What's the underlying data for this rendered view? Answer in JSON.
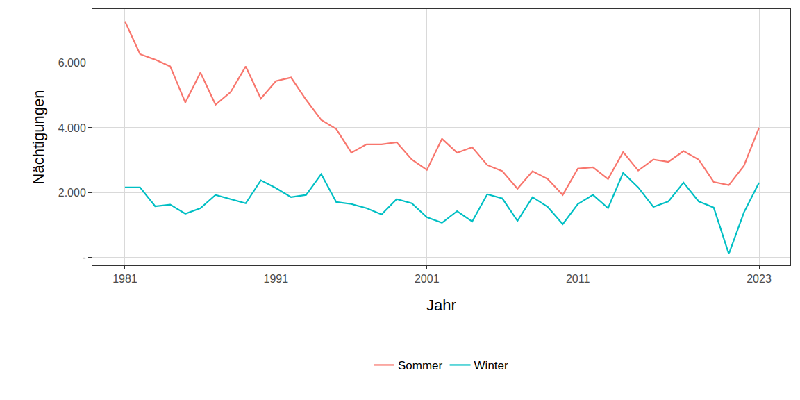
{
  "chart_data": {
    "type": "line",
    "x_label": "Jahr",
    "y_label": "Nächtigungen",
    "x": [
      1981,
      1982,
      1983,
      1984,
      1985,
      1986,
      1987,
      1988,
      1989,
      1990,
      1991,
      1992,
      1993,
      1994,
      1995,
      1996,
      1997,
      1998,
      1999,
      2000,
      2001,
      2002,
      2003,
      2004,
      2005,
      2006,
      2007,
      2008,
      2009,
      2010,
      2011,
      2012,
      2013,
      2014,
      2015,
      2016,
      2017,
      2018,
      2019,
      2020,
      2021,
      2022,
      2023
    ],
    "series": [
      {
        "name": "Sommer",
        "color": "#F8766D",
        "values": [
          7280,
          6270,
          6100,
          5890,
          4780,
          5700,
          4710,
          5100,
          5890,
          4900,
          5440,
          5550,
          4860,
          4240,
          3960,
          3230,
          3490,
          3490,
          3550,
          3020,
          2700,
          3660,
          3230,
          3400,
          2850,
          2660,
          2120,
          2660,
          2420,
          1930,
          2740,
          2780,
          2420,
          3250,
          2680,
          3020,
          2950,
          3280,
          3020,
          2330,
          2230,
          2830,
          4000
        ]
      },
      {
        "name": "Winter",
        "color": "#00BFC4",
        "values": [
          2160,
          2160,
          1580,
          1630,
          1350,
          1520,
          1930,
          1800,
          1670,
          2380,
          2140,
          1860,
          1930,
          2570,
          1710,
          1650,
          1520,
          1330,
          1800,
          1670,
          1240,
          1070,
          1430,
          1110,
          1950,
          1820,
          1130,
          1860,
          1560,
          1030,
          1650,
          1930,
          1520,
          2610,
          2160,
          1560,
          1730,
          2310,
          1730,
          1540,
          110,
          1390,
          2310
        ]
      }
    ],
    "xlim": [
      1978.84,
      2025.07
    ],
    "xticks": [
      1981,
      1991,
      2001,
      2011,
      2023
    ],
    "ylim": [
      -240,
      7660
    ],
    "yticks": [
      {
        "value": 0,
        "label": "-"
      },
      {
        "value": 2000,
        "label": "2.000"
      },
      {
        "value": 4000,
        "label": "4.000"
      },
      {
        "value": 6000,
        "label": "6.000"
      }
    ],
    "grid": true,
    "legend": "bottom"
  }
}
